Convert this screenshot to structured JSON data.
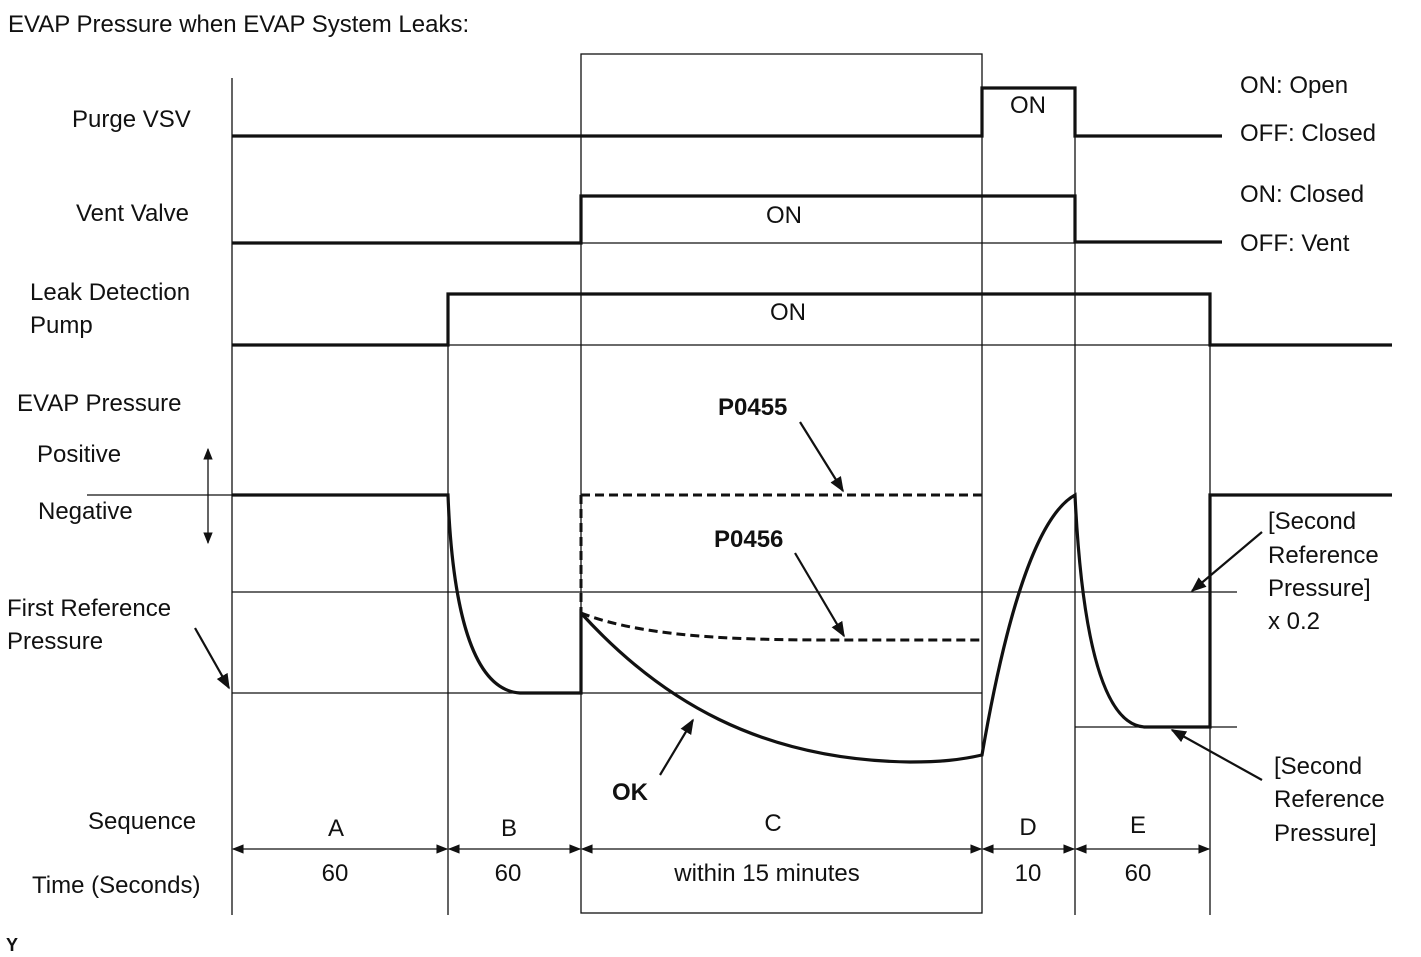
{
  "title": "EVAP Pressure when EVAP System Leaks:",
  "labels": {
    "purge_vsv": "Purge VSV",
    "vent_valve": "Vent Valve",
    "leak_pump": [
      "Leak Detection",
      "Pump"
    ],
    "evap_pressure": "EVAP Pressure",
    "positive": "Positive",
    "negative": "Negative",
    "first_reference": [
      "First Reference",
      "Pressure"
    ],
    "sequence": "Sequence",
    "time": "Time (Seconds)"
  },
  "states": {
    "purge_on": "ON: Open",
    "purge_off": "OFF: Closed",
    "vent_on": "ON: Closed",
    "vent_off": "OFF: Vent"
  },
  "on_labels": {
    "purge": "ON",
    "vent": "ON",
    "pump": "ON"
  },
  "annotations": {
    "p0455": "P0455",
    "p0456": "P0456",
    "ok": "OK",
    "second_ref_02": [
      "[Second",
      "Reference",
      "Pressure]",
      "x 0.2"
    ],
    "second_ref": [
      "[Second",
      "Reference",
      "Pressure]"
    ]
  },
  "sequence": [
    {
      "name": "A",
      "time": 60
    },
    {
      "name": "B",
      "time": 60
    },
    {
      "name": "C",
      "time": "within 15 minutes"
    },
    {
      "name": "D",
      "time": 10
    },
    {
      "name": "E",
      "time": 60
    }
  ],
  "footer": "Y"
}
